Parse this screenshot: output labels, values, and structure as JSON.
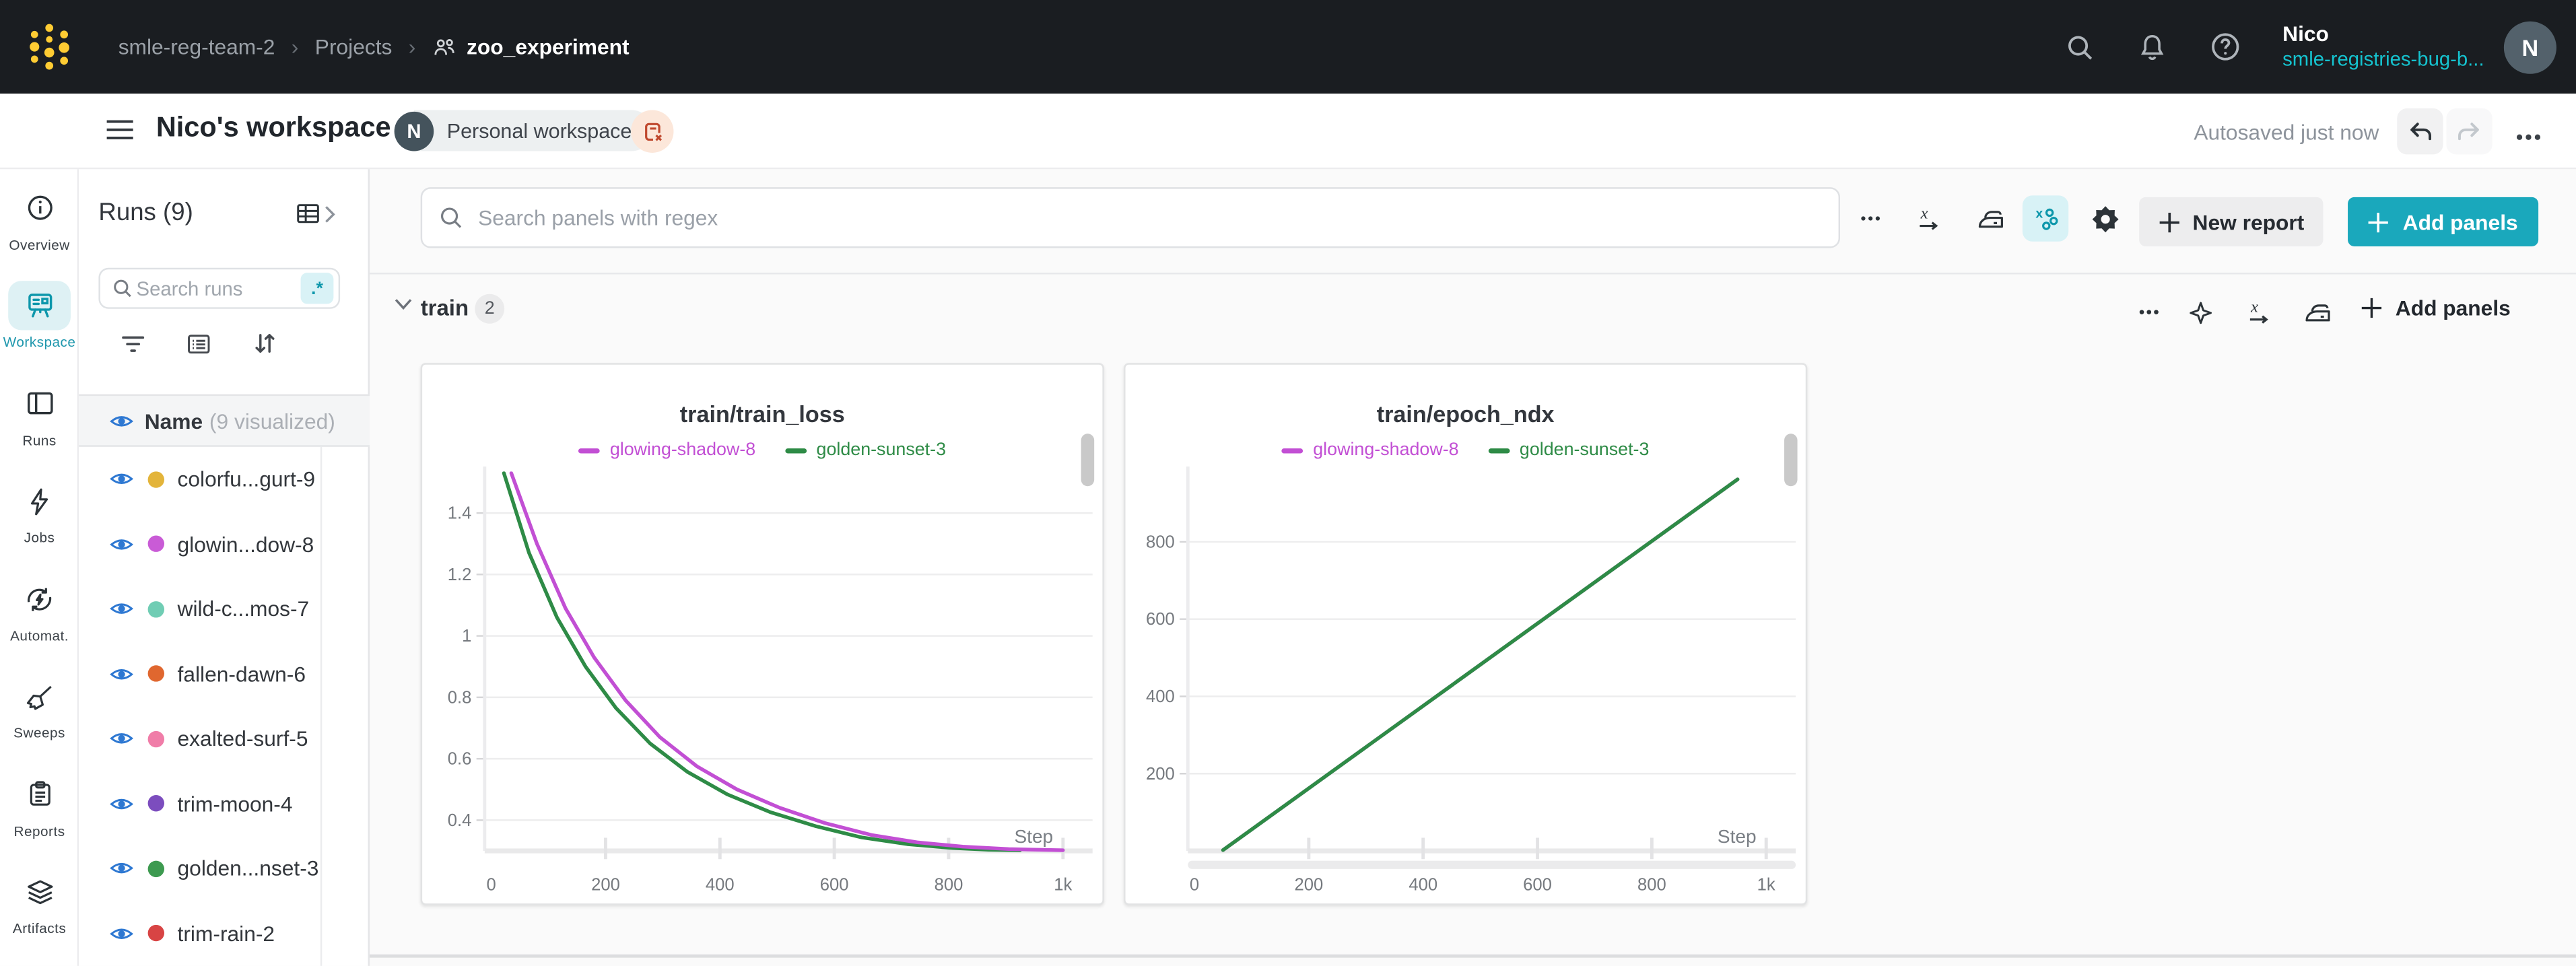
{
  "topbar": {
    "breadcrumb": [
      "smle-reg-team-2",
      "Projects",
      "zoo_experiment"
    ],
    "breadcrumb_separator": "›",
    "icons": [
      "search-icon",
      "bell-icon",
      "help-icon"
    ],
    "user": {
      "name": "Nico",
      "team": "smle-registries-bug-b...",
      "avatar_initial": "N"
    }
  },
  "header": {
    "title": "Nico's workspace",
    "workspace_badge_initial": "N",
    "workspace_chip": "Personal workspace",
    "autosave_status": "Autosaved just now"
  },
  "rail": {
    "items": [
      {
        "label": "Overview",
        "icon": "info-icon",
        "active": false
      },
      {
        "label": "Workspace",
        "icon": "workspace-icon",
        "active": true
      },
      {
        "label": "Runs",
        "icon": "runs-table-icon",
        "active": false
      },
      {
        "label": "Jobs",
        "icon": "lightning-icon",
        "active": false
      },
      {
        "label": "Automat.",
        "icon": "automations-icon",
        "active": false
      },
      {
        "label": "Sweeps",
        "icon": "broom-icon",
        "active": false
      },
      {
        "label": "Reports",
        "icon": "clipboard-icon",
        "active": false
      },
      {
        "label": "Artifacts",
        "icon": "layers-icon",
        "active": false
      }
    ]
  },
  "runs_panel": {
    "title": "Runs (9)",
    "search_placeholder": "Search runs",
    "regex_toggle": ".*",
    "header": {
      "name": "Name",
      "count": "(9 visualized)"
    },
    "rows": [
      {
        "name": "colorfu...gurt-9",
        "color": "#e3b43a"
      },
      {
        "name": "glowin...dow-8",
        "color": "#c95bd6"
      },
      {
        "name": "wild-c...mos-7",
        "color": "#70cdb4"
      },
      {
        "name": "fallen-dawn-6",
        "color": "#e0672f"
      },
      {
        "name": "exalted-surf-5",
        "color": "#f07da8"
      },
      {
        "name": "trim-moon-4",
        "color": "#7c4dbe"
      },
      {
        "name": "golden...nset-3",
        "color": "#3d9a50"
      },
      {
        "name": "trim-rain-2",
        "color": "#d84444"
      }
    ]
  },
  "toolbar": {
    "search_placeholder": "Search panels with regex",
    "new_report_label": "New report",
    "add_panels_label": "Add panels",
    "icons": [
      "ellipsis-icon",
      "x-axis-icon",
      "smoothing-iron-icon",
      "sampling-icon",
      "gear-icon"
    ]
  },
  "section": {
    "name": "train",
    "panel_count": "2",
    "add_panels_label": "Add panels",
    "icons": [
      "ellipsis-icon",
      "sparkle-icon",
      "x-axis-icon",
      "smoothing-iron-icon"
    ]
  },
  "accent_colors": {
    "teal": "#1aa8bc",
    "magenta": "#c24fd4",
    "green": "#2e8b46",
    "eye_blue": "#2e78d2"
  },
  "chart_data": [
    {
      "type": "line",
      "title": "train/train_loss",
      "xlabel": "Step",
      "xlim": [
        0,
        1052
      ],
      "ylim": [
        0.3,
        1.53
      ],
      "grid": true,
      "legend_position": "top",
      "legend": [
        {
          "name": "glowing-shadow-8",
          "color": "#c24fd4"
        },
        {
          "name": "golden-sunset-3",
          "color": "#2e8b46"
        }
      ],
      "x_ticks": [
        {
          "v": 0,
          "label": "0"
        },
        {
          "v": 200,
          "label": "200"
        },
        {
          "v": 400,
          "label": "400"
        },
        {
          "v": 600,
          "label": "600"
        },
        {
          "v": 800,
          "label": "800"
        },
        {
          "v": 1000,
          "label": "1k"
        }
      ],
      "y_ticks": [
        {
          "v": 0.4,
          "label": "0.4"
        },
        {
          "v": 0.6,
          "label": "0.6"
        },
        {
          "v": 0.8,
          "label": "0.8"
        },
        {
          "v": 1.0,
          "label": "1"
        },
        {
          "v": 1.2,
          "label": "1.2"
        },
        {
          "v": 1.4,
          "label": "1.4"
        }
      ],
      "series": [
        {
          "name": "golden-sunset-3",
          "color": "#2e8b46",
          "points": [
            [
              22,
              1.53
            ],
            [
              66,
              1.27
            ],
            [
              115,
              1.06
            ],
            [
              165,
              0.9
            ],
            [
              218,
              0.765
            ],
            [
              278,
              0.65
            ],
            [
              343,
              0.557
            ],
            [
              413,
              0.484
            ],
            [
              488,
              0.426
            ],
            [
              568,
              0.38
            ],
            [
              648,
              0.344
            ],
            [
              728,
              0.322
            ],
            [
              808,
              0.309
            ],
            [
              870,
              0.304
            ],
            [
              925,
              0.302
            ]
          ]
        },
        {
          "name": "glowing-shadow-8",
          "color": "#c24fd4",
          "points": [
            [
              35,
              1.53
            ],
            [
              80,
              1.3
            ],
            [
              130,
              1.09
            ],
            [
              180,
              0.93
            ],
            [
              235,
              0.79
            ],
            [
              295,
              0.67
            ],
            [
              360,
              0.575
            ],
            [
              430,
              0.5
            ],
            [
              505,
              0.44
            ],
            [
              585,
              0.39
            ],
            [
              665,
              0.352
            ],
            [
              745,
              0.328
            ],
            [
              825,
              0.314
            ],
            [
              905,
              0.306
            ],
            [
              1000,
              0.302
            ]
          ]
        }
      ],
      "h_scrollbar": false
    },
    {
      "type": "line",
      "title": "train/epoch_ndx",
      "xlabel": "Step",
      "xlim": [
        0,
        1052
      ],
      "ylim": [
        0,
        978
      ],
      "grid": true,
      "legend_position": "top",
      "legend": [
        {
          "name": "glowing-shadow-8",
          "color": "#c24fd4"
        },
        {
          "name": "golden-sunset-3",
          "color": "#2e8b46"
        }
      ],
      "x_ticks": [
        {
          "v": 0,
          "label": "0"
        },
        {
          "v": 200,
          "label": "200"
        },
        {
          "v": 400,
          "label": "400"
        },
        {
          "v": 600,
          "label": "600"
        },
        {
          "v": 800,
          "label": "800"
        },
        {
          "v": 1000,
          "label": "1k"
        }
      ],
      "y_ticks": [
        {
          "v": 200,
          "label": "200"
        },
        {
          "v": 400,
          "label": "400"
        },
        {
          "v": 600,
          "label": "600"
        },
        {
          "v": 800,
          "label": "800"
        }
      ],
      "series": [
        {
          "name": "glowing-shadow-8",
          "color": "#c24fd4",
          "points": [
            [
              50,
              2
            ],
            [
              950,
              962
            ]
          ]
        },
        {
          "name": "golden-sunset-3",
          "color": "#2e8b46",
          "points": [
            [
              50,
              2
            ],
            [
              950,
              962
            ]
          ]
        }
      ],
      "h_scrollbar": true
    }
  ]
}
